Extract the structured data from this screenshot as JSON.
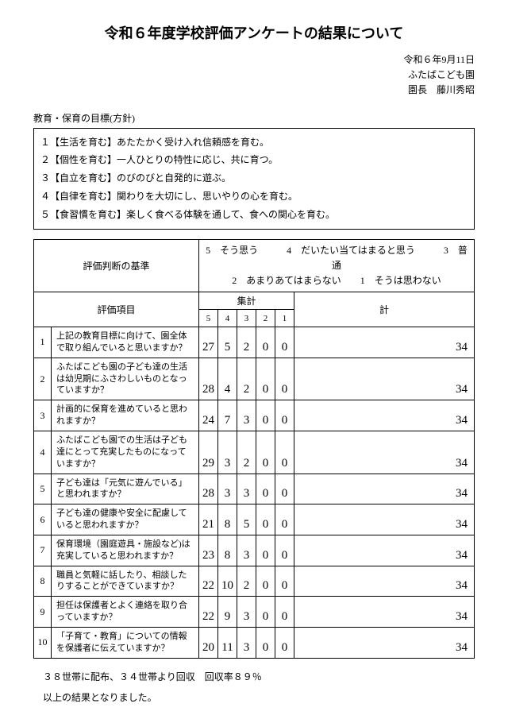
{
  "title": "令和６年度学校評価アンケートの結果について",
  "meta": {
    "date": "令和６年9月11日",
    "school": "ふたばこども園",
    "director": "園長　藤川秀昭"
  },
  "subtitle": "教育・保育の目標(方針)",
  "policies": [
    "１【生活を育む】あたたかく受け入れ信頼感を育む。",
    "２【個性を育む】一人ひとりの特性に応じ、共に育つ。",
    "３【自立を育む】のびのびと自発的に遊ぶ。",
    "４【自律を育む】関わりを大切にし、思いやりの心を育む。",
    "５【食習慣を育む】楽しく食べる体験を通して、食への関心を育む。"
  ],
  "criteria_label": "評価判断の基準",
  "criteria_text_top": "5　そう思う　　　4　だいたい当てはまると思う　　　3　普通",
  "criteria_text_bottom": "2　あまりあてはまらない　　1　そうは思わない",
  "headers": {
    "item": "評価項目",
    "aggregate": "集計",
    "total": "計",
    "scores": [
      "5",
      "4",
      "3",
      "2",
      "1"
    ]
  },
  "rows": [
    {
      "n": "1",
      "q": "上記の教育目標に向けて、園全体で取り組んでいると思いますか？",
      "s": [
        "27",
        "5",
        "2",
        "0",
        "0"
      ],
      "t": "34"
    },
    {
      "n": "2",
      "q": "ふたばこども園の子ども達の生活は幼児期にふさわしいものとなっていますか？",
      "s": [
        "28",
        "4",
        "2",
        "0",
        "0"
      ],
      "t": "34"
    },
    {
      "n": "3",
      "q": "計画的に保育を進めていると思われますか？",
      "s": [
        "24",
        "7",
        "3",
        "0",
        "0"
      ],
      "t": "34"
    },
    {
      "n": "4",
      "q": "ふたばこども園での生活は子ども達にとって充実したものになっていますか？",
      "s": [
        "29",
        "3",
        "2",
        "0",
        "0"
      ],
      "t": "34"
    },
    {
      "n": "5",
      "q": "子ども達は「元気に遊んでいる」と思われますか？",
      "s": [
        "28",
        "3",
        "3",
        "0",
        "0"
      ],
      "t": "34"
    },
    {
      "n": "6",
      "q": "子ども達の健康や安全に配慮していると思われますか？",
      "s": [
        "21",
        "8",
        "5",
        "0",
        "0"
      ],
      "t": "34"
    },
    {
      "n": "7",
      "q": "保育環境（園庭遊具・施設など)は充実していると思われますか？",
      "s": [
        "23",
        "8",
        "3",
        "0",
        "0"
      ],
      "t": "34"
    },
    {
      "n": "8",
      "q": "職員と気軽に話したり、相談したりすることができていますか？",
      "s": [
        "22",
        "10",
        "2",
        "0",
        "0"
      ],
      "t": "34"
    },
    {
      "n": "9",
      "q": "担任は保護者とよく連絡を取り合っていますか？",
      "s": [
        "22",
        "9",
        "3",
        "0",
        "0"
      ],
      "t": "34"
    },
    {
      "n": "10",
      "q": "「子育て・教育」についての情報を保護者に伝えていますか？",
      "s": [
        "20",
        "11",
        "3",
        "0",
        "0"
      ],
      "t": "34"
    }
  ],
  "footer1": "３８世帯に配布、３４世帯より回収　回収率８９％",
  "footer2": "以上の結果となりました。"
}
